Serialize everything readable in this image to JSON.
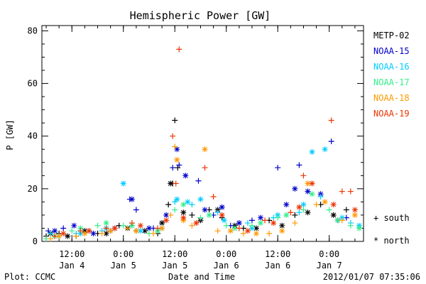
{
  "chart_data": {
    "type": "scatter",
    "title": "Hemispheric Power [GW]",
    "ylabel": "P [GW]",
    "xlabel": "Date and Time",
    "ylim": [
      0,
      82
    ],
    "yticks": [
      0,
      20,
      40,
      60,
      80
    ],
    "xlim": [
      "2012-01-04T05:00",
      "2012-01-07T08:00"
    ],
    "xticks": [
      {
        "time": "2012-01-04T12:00",
        "label_top": "12:00",
        "label_bottom": "Jan 4"
      },
      {
        "time": "2012-01-05T00:00",
        "label_top": "0:00",
        "label_bottom": "Jan 5"
      },
      {
        "time": "2012-01-05T12:00",
        "label_top": "12:00",
        "label_bottom": "Jan 5"
      },
      {
        "time": "2012-01-06T00:00",
        "label_top": "0:00",
        "label_bottom": "Jan 6"
      },
      {
        "time": "2012-01-06T12:00",
        "label_top": "12:00",
        "label_bottom": "Jan 6"
      },
      {
        "time": "2012-01-07T00:00",
        "label_top": "0:00",
        "label_bottom": "Jan 7"
      }
    ],
    "legend_position": "right",
    "symbol_legend": {
      "south": "+ south",
      "north": "* north"
    },
    "series": [
      {
        "name": "METP-02",
        "color": "#000000",
        "south": [
          [
            "2012-01-04T06:00",
            2
          ],
          [
            "2012-01-04T09:00",
            3
          ],
          [
            "2012-01-04T13:00",
            2
          ],
          [
            "2012-01-04T18:00",
            3
          ],
          [
            "2012-01-04T23:00",
            6
          ],
          [
            "2012-01-05T03:00",
            4
          ],
          [
            "2012-01-05T08:00",
            3
          ],
          [
            "2012-01-05T10:30",
            14
          ],
          [
            "2012-01-05T11:30",
            22
          ],
          [
            "2012-01-05T12:00",
            46
          ],
          [
            "2012-01-05T12:40",
            28
          ],
          [
            "2012-01-05T16:00",
            10
          ],
          [
            "2012-01-05T20:00",
            12
          ],
          [
            "2012-01-05T23:00",
            9
          ],
          [
            "2012-01-06T04:00",
            5
          ],
          [
            "2012-01-06T10:00",
            8
          ],
          [
            "2012-01-06T16:00",
            10
          ],
          [
            "2012-01-06T22:00",
            14
          ],
          [
            "2012-01-07T04:00",
            12
          ]
        ],
        "north": [
          [
            "2012-01-04T07:00",
            3
          ],
          [
            "2012-01-04T11:00",
            2
          ],
          [
            "2012-01-04T15:00",
            4
          ],
          [
            "2012-01-04T20:00",
            3
          ],
          [
            "2012-01-05T01:00",
            5
          ],
          [
            "2012-01-05T05:00",
            4
          ],
          [
            "2012-01-05T09:00",
            7
          ],
          [
            "2012-01-05T11:00",
            22
          ],
          [
            "2012-01-05T14:00",
            11
          ],
          [
            "2012-01-05T18:00",
            8
          ],
          [
            "2012-01-05T22:00",
            12
          ],
          [
            "2012-01-06T02:00",
            6
          ],
          [
            "2012-01-06T07:00",
            5
          ],
          [
            "2012-01-06T13:00",
            6
          ],
          [
            "2012-01-06T19:00",
            11
          ],
          [
            "2012-01-07T01:00",
            10
          ]
        ]
      },
      {
        "name": "NOAA-15",
        "color": "#0000cc",
        "south": [
          [
            "2012-01-04T06:30",
            4
          ],
          [
            "2012-01-04T10:00",
            5
          ],
          [
            "2012-01-04T16:00",
            4
          ],
          [
            "2012-01-04T21:00",
            4
          ],
          [
            "2012-01-05T01:30",
            16
          ],
          [
            "2012-01-05T03:00",
            12
          ],
          [
            "2012-01-05T07:00",
            5
          ],
          [
            "2012-01-05T11:30",
            28
          ],
          [
            "2012-01-05T13:00",
            29
          ],
          [
            "2012-01-05T17:30",
            23
          ],
          [
            "2012-01-05T21:00",
            10
          ],
          [
            "2012-01-06T01:00",
            6
          ],
          [
            "2012-01-06T06:00",
            8
          ],
          [
            "2012-01-06T12:00",
            28
          ],
          [
            "2012-01-06T17:00",
            29
          ],
          [
            "2012-01-07T00:30",
            38
          ],
          [
            "2012-01-07T04:00",
            9
          ]
        ],
        "north": [
          [
            "2012-01-04T08:00",
            4
          ],
          [
            "2012-01-04T12:30",
            6
          ],
          [
            "2012-01-04T17:00",
            3
          ],
          [
            "2012-01-04T22:00",
            5
          ],
          [
            "2012-01-05T02:00",
            16
          ],
          [
            "2012-01-05T06:00",
            5
          ],
          [
            "2012-01-05T10:00",
            10
          ],
          [
            "2012-01-05T12:30",
            35
          ],
          [
            "2012-01-05T14:30",
            25
          ],
          [
            "2012-01-05T19:00",
            12
          ],
          [
            "2012-01-05T23:00",
            13
          ],
          [
            "2012-01-06T03:00",
            7
          ],
          [
            "2012-01-06T08:00",
            9
          ],
          [
            "2012-01-06T14:00",
            14
          ],
          [
            "2012-01-06T16:00",
            20
          ],
          [
            "2012-01-06T19:00",
            19
          ],
          [
            "2012-01-06T22:00",
            18
          ],
          [
            "2012-01-07T02:00",
            8
          ]
        ]
      },
      {
        "name": "NOAA-16",
        "color": "#00ccff",
        "south": [
          [
            "2012-01-04T07:00",
            3
          ],
          [
            "2012-01-04T13:00",
            3
          ],
          [
            "2012-01-04T19:00",
            4
          ],
          [
            "2012-01-05T02:00",
            6
          ],
          [
            "2012-01-05T08:00",
            4
          ],
          [
            "2012-01-05T12:00",
            15
          ],
          [
            "2012-01-05T16:00",
            14
          ],
          [
            "2012-01-05T22:00",
            11
          ],
          [
            "2012-01-06T05:00",
            7
          ],
          [
            "2012-01-06T11:00",
            9
          ],
          [
            "2012-01-06T17:00",
            11
          ],
          [
            "2012-01-06T22:00",
            17
          ],
          [
            "2012-01-07T05:00",
            7
          ]
        ],
        "north": [
          [
            "2012-01-04T09:00",
            2
          ],
          [
            "2012-01-04T14:00",
            3
          ],
          [
            "2012-01-04T20:00",
            5
          ],
          [
            "2012-01-05T00:00",
            22
          ],
          [
            "2012-01-05T04:00",
            4
          ],
          [
            "2012-01-05T09:00",
            5
          ],
          [
            "2012-01-05T12:30",
            16
          ],
          [
            "2012-01-05T15:00",
            15
          ],
          [
            "2012-01-05T18:00",
            16
          ],
          [
            "2012-01-05T23:30",
            8
          ],
          [
            "2012-01-06T06:00",
            5
          ],
          [
            "2012-01-06T12:00",
            10
          ],
          [
            "2012-01-06T18:00",
            14
          ],
          [
            "2012-01-06T20:00",
            34
          ],
          [
            "2012-01-06T23:00",
            35
          ],
          [
            "2012-01-07T03:00",
            9
          ],
          [
            "2012-01-07T07:00",
            6
          ]
        ]
      },
      {
        "name": "NOAA-17",
        "color": "#33ee88",
        "south": [
          [
            "2012-01-04T06:00",
            1
          ],
          [
            "2012-01-04T12:00",
            4
          ],
          [
            "2012-01-04T18:00",
            6
          ],
          [
            "2012-01-05T00:00",
            6
          ],
          [
            "2012-01-05T06:00",
            3
          ],
          [
            "2012-01-05T12:00",
            12
          ],
          [
            "2012-01-05T18:00",
            9
          ],
          [
            "2012-01-06T00:00",
            6
          ],
          [
            "2012-01-06T06:00",
            6
          ],
          [
            "2012-01-06T12:00",
            9
          ],
          [
            "2012-01-06T18:00",
            12
          ],
          [
            "2012-01-07T00:00",
            12
          ],
          [
            "2012-01-07T05:00",
            6
          ]
        ],
        "north": [
          [
            "2012-01-04T08:00",
            2
          ],
          [
            "2012-01-04T14:00",
            5
          ],
          [
            "2012-01-04T20:00",
            7
          ],
          [
            "2012-01-05T02:00",
            6
          ],
          [
            "2012-01-05T08:00",
            4
          ],
          [
            "2012-01-05T14:00",
            14
          ],
          [
            "2012-01-05T20:00",
            10
          ],
          [
            "2012-01-06T02:00",
            5
          ],
          [
            "2012-01-06T08:00",
            7
          ],
          [
            "2012-01-06T14:00",
            10
          ],
          [
            "2012-01-06T20:00",
            18
          ],
          [
            "2012-01-07T02:00",
            8
          ],
          [
            "2012-01-07T07:00",
            5
          ]
        ]
      },
      {
        "name": "NOAA-18",
        "color": "#ff9900",
        "south": [
          [
            "2012-01-04T07:00",
            1
          ],
          [
            "2012-01-04T13:00",
            2
          ],
          [
            "2012-01-04T19:00",
            3
          ],
          [
            "2012-01-05T01:00",
            5
          ],
          [
            "2012-01-05T07:00",
            3
          ],
          [
            "2012-01-05T11:00",
            10
          ],
          [
            "2012-01-05T12:00",
            36
          ],
          [
            "2012-01-05T16:00",
            6
          ],
          [
            "2012-01-05T22:00",
            4
          ],
          [
            "2012-01-06T04:00",
            3
          ],
          [
            "2012-01-06T10:00",
            3
          ],
          [
            "2012-01-06T16:00",
            7
          ],
          [
            "2012-01-06T21:00",
            14
          ],
          [
            "2012-01-07T03:00",
            8
          ]
        ],
        "north": [
          [
            "2012-01-04T09:00",
            2
          ],
          [
            "2012-01-04T15:00",
            3
          ],
          [
            "2012-01-04T21:00",
            4
          ],
          [
            "2012-01-05T03:00",
            4
          ],
          [
            "2012-01-05T09:00",
            5
          ],
          [
            "2012-01-05T12:30",
            31
          ],
          [
            "2012-01-05T14:00",
            8
          ],
          [
            "2012-01-05T19:00",
            35
          ],
          [
            "2012-01-06T01:00",
            4
          ],
          [
            "2012-01-06T07:00",
            3
          ],
          [
            "2012-01-06T13:00",
            4
          ],
          [
            "2012-01-06T19:00",
            22
          ],
          [
            "2012-01-06T23:00",
            15
          ],
          [
            "2012-01-07T06:00",
            10
          ]
        ]
      },
      {
        "name": "NOAA-19",
        "color": "#ee3300",
        "south": [
          [
            "2012-01-04T08:00",
            2
          ],
          [
            "2012-01-04T14:00",
            4
          ],
          [
            "2012-01-04T20:00",
            5
          ],
          [
            "2012-01-05T02:00",
            7
          ],
          [
            "2012-01-05T08:00",
            5
          ],
          [
            "2012-01-05T11:30",
            40
          ],
          [
            "2012-01-05T12:15",
            22
          ],
          [
            "2012-01-05T13:00",
            73
          ],
          [
            "2012-01-05T19:00",
            28
          ],
          [
            "2012-01-05T21:00",
            17
          ],
          [
            "2012-01-06T03:00",
            5
          ],
          [
            "2012-01-06T09:00",
            8
          ],
          [
            "2012-01-06T15:00",
            11
          ],
          [
            "2012-01-06T18:00",
            25
          ],
          [
            "2012-01-07T00:30",
            46
          ],
          [
            "2012-01-07T03:00",
            19
          ],
          [
            "2012-01-07T05:00",
            19
          ]
        ],
        "north": [
          [
            "2012-01-04T10:00",
            3
          ],
          [
            "2012-01-04T16:00",
            4
          ],
          [
            "2012-01-04T22:00",
            5
          ],
          [
            "2012-01-05T04:00",
            6
          ],
          [
            "2012-01-05T10:00",
            8
          ],
          [
            "2012-01-05T14:00",
            9
          ],
          [
            "2012-01-05T17:00",
            7
          ],
          [
            "2012-01-05T23:00",
            10
          ],
          [
            "2012-01-06T05:00",
            4
          ],
          [
            "2012-01-06T11:00",
            7
          ],
          [
            "2012-01-06T17:00",
            13
          ],
          [
            "2012-01-06T20:00",
            22
          ],
          [
            "2012-01-07T01:00",
            14
          ],
          [
            "2012-01-07T06:00",
            12
          ]
        ]
      }
    ]
  },
  "footer": {
    "left": "Plot: CCMC",
    "right": "2012/01/07 07:35:06"
  }
}
